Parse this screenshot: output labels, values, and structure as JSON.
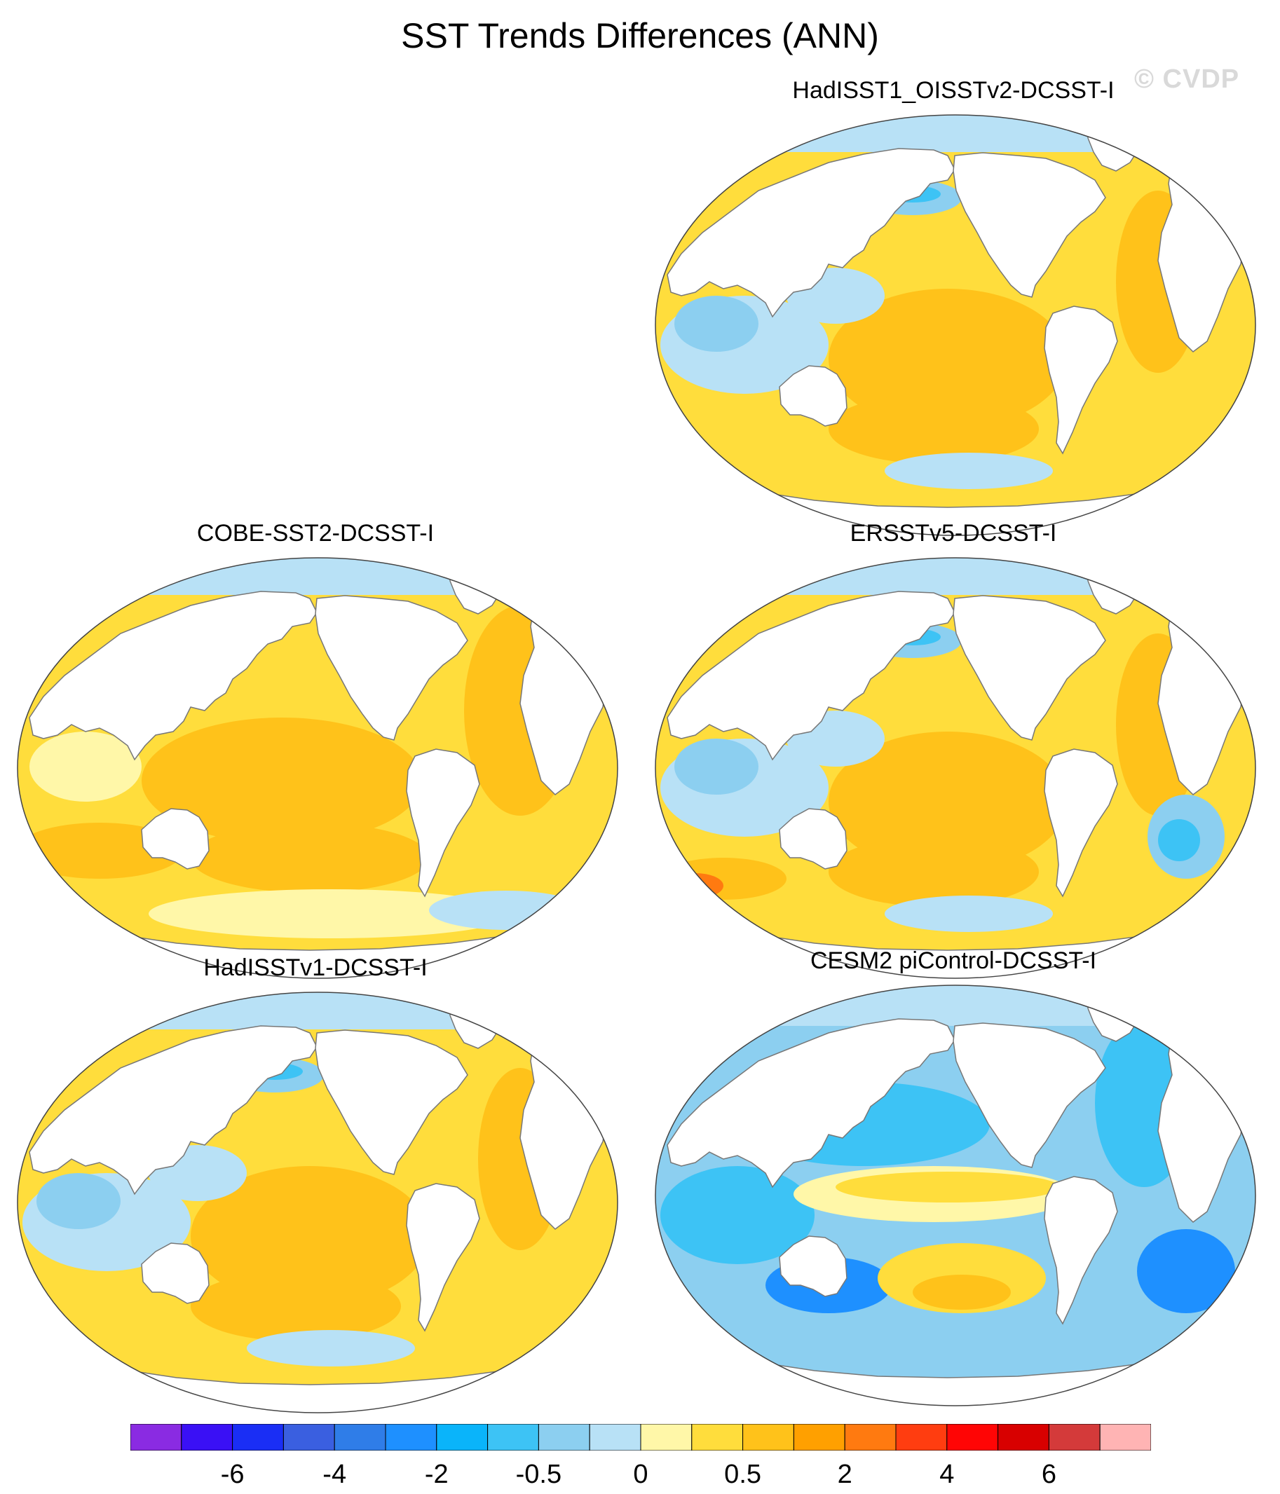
{
  "title": "SST Trends Differences (ANN)",
  "watermark": "© CVDP",
  "panels": [
    {
      "id": "p1",
      "title": "HadISST1_OISSTv2-DCSST-I",
      "style": "mixed"
    },
    {
      "id": "p2",
      "title": "COBE-SST2-DCSST-I",
      "style": "warm"
    },
    {
      "id": "p3",
      "title": "ERSSTv5-DCSST-I",
      "style": "mixed-warm"
    },
    {
      "id": "p4",
      "title": "HadISSTv1-DCSST-I",
      "style": "mixed"
    },
    {
      "id": "p5",
      "title": "CESM2 piControl-DCSST-I",
      "style": "cool"
    }
  ],
  "colorbar": {
    "colors": [
      "#8a2be2",
      "#3a10f5",
      "#1a2ef5",
      "#3a5fe0",
      "#2f7de8",
      "#1e90ff",
      "#0ab4fa",
      "#3dc3f5",
      "#8ccff0",
      "#b8e1f6",
      "#fff7a8",
      "#ffdd3c",
      "#ffc21a",
      "#ffa000",
      "#ff7a10",
      "#ff3d10",
      "#ff0505",
      "#d80000",
      "#d43a3a",
      "#ffb4b4"
    ],
    "labels": [
      "-6",
      "-4",
      "-2",
      "-0.5",
      "0",
      "0.5",
      "2",
      "4",
      "6"
    ]
  }
}
